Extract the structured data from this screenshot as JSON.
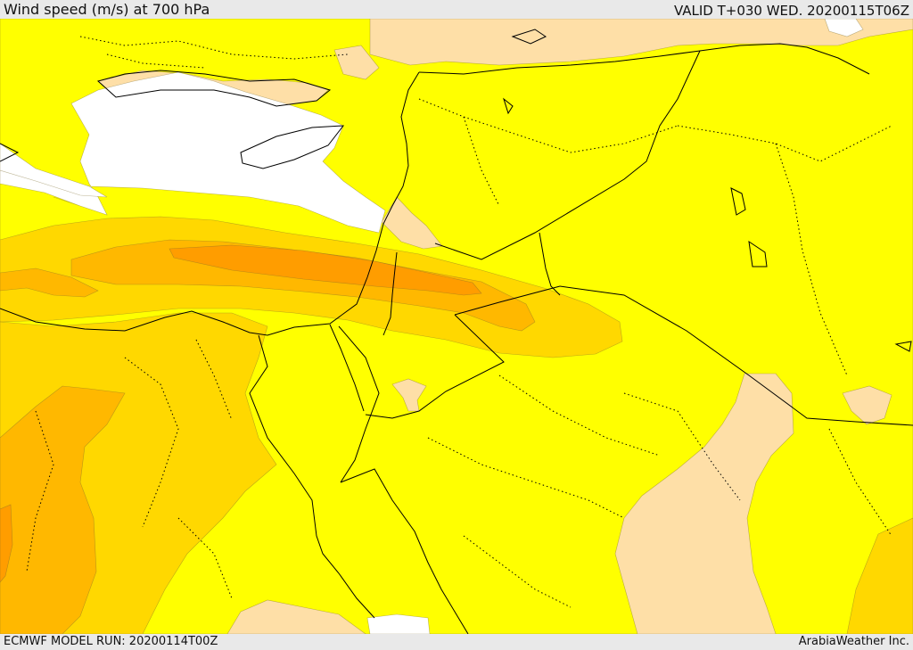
{
  "header": {
    "title": "Wind speed (m/s) at 700 hPa",
    "valid": "VALID T+030 WED. 20200115T06Z"
  },
  "footer": {
    "model_run": "ECMWF MODEL RUN: 20200114T00Z",
    "credit": "ArabiaWeather Inc."
  },
  "map": {
    "colors": {
      "calm": "#ffffff",
      "light": "#fedfa7",
      "moderate": "#ffff00",
      "fresh": "#ffd800",
      "strong": "#ffb800",
      "very_strong": "#ff9d00",
      "border": "#000000"
    }
  }
}
